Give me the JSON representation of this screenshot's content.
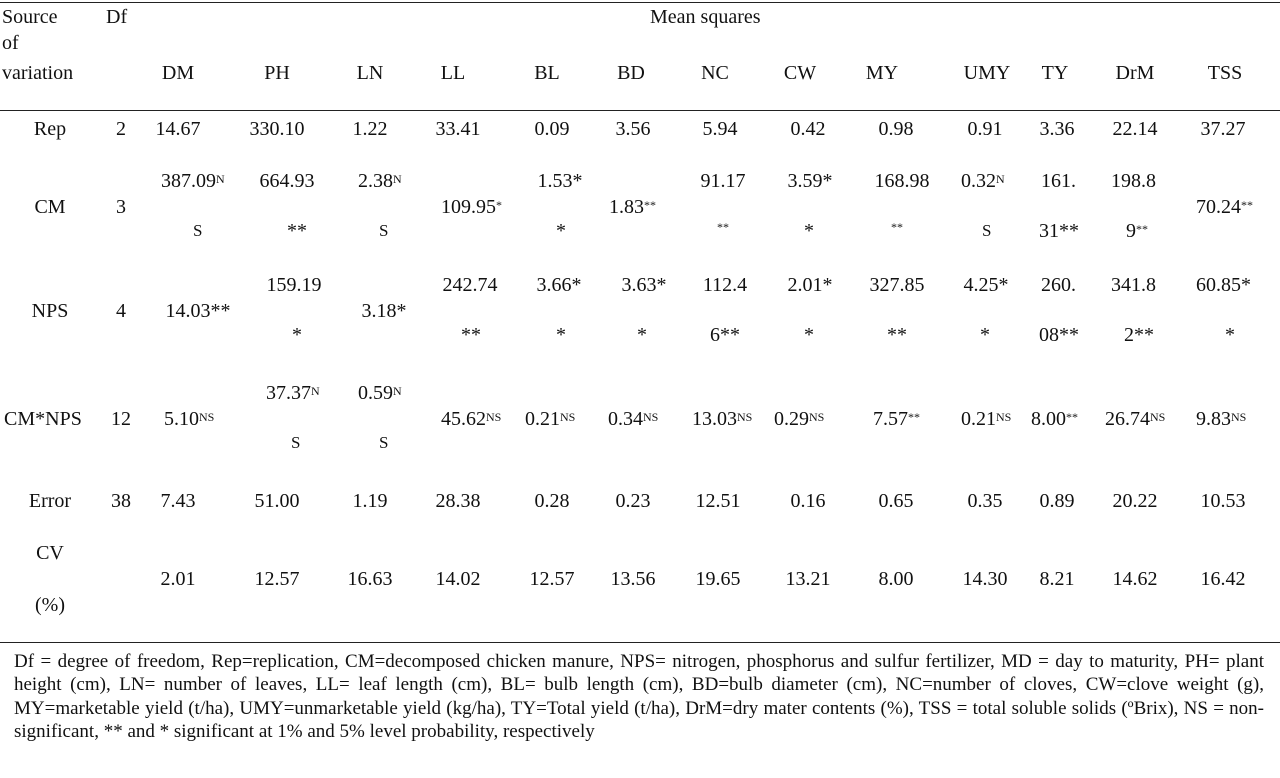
{
  "header": {
    "source_line1": "Source",
    "source_line2": "of",
    "source_line3": "variation",
    "df": "Df",
    "group": "Mean squares",
    "columns": [
      "DM",
      "PH",
      "LN",
      "LL",
      "BL",
      "BD",
      "NC",
      "CW",
      "MY",
      "UMY",
      "TY",
      "DrM",
      "TSS"
    ]
  },
  "rows": {
    "rep": {
      "label": "Rep",
      "df": "2",
      "values": [
        "14.67",
        "330.10",
        "1.22",
        "33.41",
        "0.09",
        "3.56",
        "5.94",
        "0.42",
        "0.98",
        "0.91",
        "3.36",
        "22.14",
        "37.27"
      ]
    },
    "cm": {
      "label": "CM",
      "df": "3",
      "dm": [
        "387.09",
        "N",
        "S"
      ],
      "ph": [
        "664.93",
        "**"
      ],
      "ln": [
        "2.38",
        "N",
        "S"
      ],
      "ll": [
        "109.95",
        "*"
      ],
      "bl": [
        "1.53*",
        "*"
      ],
      "bd": [
        "1.83",
        "**"
      ],
      "nc": [
        "91.17",
        "**"
      ],
      "cw": [
        "3.59*",
        "*"
      ],
      "my": [
        "168.98",
        "**"
      ],
      "umy": [
        "0.32",
        "N",
        "S"
      ],
      "ty": [
        "161.",
        "31**"
      ],
      "drm": [
        "198.8",
        "9",
        "**"
      ],
      "tss": [
        "70.24",
        "**"
      ]
    },
    "nps": {
      "label": "NPS",
      "df": "4",
      "dm": "14.03**",
      "ph": [
        "159.19",
        "*"
      ],
      "ln": "3.18*",
      "ll": [
        "242.74",
        "**"
      ],
      "bl": [
        "3.66*",
        "*"
      ],
      "bd": [
        "3.63*",
        "*"
      ],
      "nc": [
        "112.4",
        "6**"
      ],
      "cw": [
        "2.01*",
        "*"
      ],
      "my": [
        "327.85",
        "**"
      ],
      "umy": [
        "4.25*",
        "*"
      ],
      "ty": [
        "260.",
        "08**"
      ],
      "drm": [
        "341.8",
        "2**"
      ],
      "tss": [
        "60.85*",
        "*"
      ]
    },
    "cmnps": {
      "label": "CM*NPS",
      "df": "12",
      "dm": [
        "5.10",
        "NS"
      ],
      "ph": [
        "37.37",
        "N",
        "S"
      ],
      "ln": [
        "0.59",
        "N",
        "S"
      ],
      "ll": [
        "45.62",
        "NS"
      ],
      "bl": [
        "0.21",
        "NS"
      ],
      "bd": [
        "0.34",
        "NS"
      ],
      "nc": [
        "13.03",
        "NS"
      ],
      "cw": [
        "0.29",
        "NS"
      ],
      "my": [
        "7.57",
        "**"
      ],
      "umy": [
        "0.21",
        "NS"
      ],
      "ty": [
        "8.00",
        "**"
      ],
      "drm": [
        "26.74",
        "NS"
      ],
      "tss": [
        "9.83",
        "NS"
      ]
    },
    "error": {
      "label": "Error",
      "df": "38",
      "values": [
        "7.43",
        "51.00",
        "1.19",
        "28.38",
        "0.28",
        "0.23",
        "12.51",
        "0.16",
        "0.65",
        "0.35",
        "0.89",
        "20.22",
        "10.53"
      ]
    },
    "cv": {
      "label_line1": "CV",
      "label_line2": "(%)",
      "values": [
        "2.01",
        "12.57",
        "16.63",
        "14.02",
        "12.57",
        "13.56",
        "19.65",
        "13.21",
        "8.00",
        "14.30",
        "8.21",
        "14.62",
        "16.42"
      ]
    }
  },
  "footnote": "Df = degree of freedom, Rep=replication, CM=decomposed chicken manure, NPS= nitrogen, phosphorus and sulfur fertilizer, MD = day to maturity, PH= plant height (cm), LN= number of leaves, LL= leaf length (cm), BL= bulb length (cm), BD=bulb diameter (cm), NC=number of cloves, CW=clove weight (g), MY=marketable yield (t/ha), UMY=unmarketable yield (kg/ha), TY=Total yield (t/ha), DrM=dry mater contents (%), TSS = total soluble solids (ºBrix), NS = non-significant, ** and * significant at 1% and 5% level probability, respectively"
}
